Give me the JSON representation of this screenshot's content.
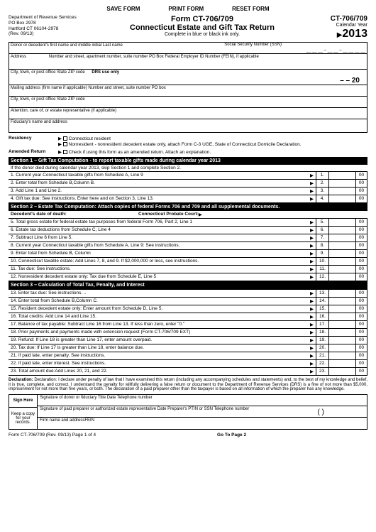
{
  "buttons": {
    "save": "SAVE FORM",
    "print": "PRINT FORM",
    "reset": "RESET FORM"
  },
  "dept": {
    "l1": "Department of Revenue Services",
    "l2": "PO Box 2978",
    "l3": "Hartford CT 06104-2978",
    "l4": "(Rev. 09/13)"
  },
  "title": {
    "code": "Form CT-706/709",
    "name": "Connecticut Estate and Gift Tax Return",
    "sub": "Complete in blue or black ink only."
  },
  "yearbox": {
    "code": "CT-706/709",
    "cal": "Calendar Year",
    "year": "2013"
  },
  "fields": {
    "donor": "Donor or decedent's first name and middle initial Last name",
    "ssn": "Social Security Number (SSN)",
    "address": "Address",
    "address_hint": "Number and street, apartment number, suite number   PO Box  Federal Employer ID Number (FEIN), if applicable",
    "city1": "City, town, or post office State ZIP code",
    "drs": "DRS use only",
    "dash20": "–                – 20",
    "mailing": "Mailing address (firm name if applicable) Number and street, suite number  PO box",
    "city2": "City, town, or post office State ZIP code",
    "attention": "Attention, care of, or estate representative (if applicable)",
    "fiduciary": "Fiduciary's name and address"
  },
  "residency": {
    "label": "Residency",
    "opt1": "Connecticut resident",
    "opt2": "Nonresident - nonresident decedent estate only, attach Form C-3 UGE, State of Connecticut Domicile Declaration.",
    "amended_label": "Amended Return",
    "amended_text": "Check if using this form as an amended return. Attach an explanation."
  },
  "sec1": {
    "header": "Section 1 –  Gift Tax Computation - to report taxable gifts made during calendar year 2013",
    "sub": "If the donor died during calendar year 2013, skip Section 1 and complete Section 2.",
    "lines": [
      {
        "n": "1",
        "d": "1. Current year Connecticut taxable gifts from Schedule A, Line 9",
        "c": "00"
      },
      {
        "n": "2",
        "d": "2. Enter total from Schedule B,Column B.",
        "c": "00"
      },
      {
        "n": "3",
        "d": "3. Add Line 1 and Line 2.",
        "c": "00"
      },
      {
        "n": "4",
        "d": "4. Gift tax due: See instructions. Enter here and on Section 3, Line 13.",
        "c": "00"
      }
    ]
  },
  "sec2": {
    "header": "Section 2 –  Estate Tax Computation: Attach copies of federal Forms 706 and 709 and all supplemental documents.",
    "sub_l": "Decedent's date of death:",
    "sub_r": "Connecticut Probate Court:",
    "lines": [
      {
        "n": "5",
        "d": "5. Total gross estate for federal estate tax purposes from federal Form 706, Part 2, Line 1",
        "c": "00"
      },
      {
        "n": "6",
        "d": "6. Estate tax deductions from Schedule C, Line 4",
        "c": "00"
      },
      {
        "n": "7",
        "d": "7. Subtract Line 6 from Line 5.",
        "c": "00"
      },
      {
        "n": "8",
        "d": "8. Current year Connecticut taxable gifts from Schedule A, Line 9: See instructions.",
        "c": "00"
      },
      {
        "n": "9",
        "d": "9. Enter total from Schedule B, Column",
        "c": "00"
      },
      {
        "n": "10",
        "d": "10. Connecticut taxable estate: Add Lines 7, 8, and 9. If $2,000,000 or less, see instructions.",
        "c": "00"
      },
      {
        "n": "11",
        "d": "11. Tax due: See instructions.",
        "c": "00"
      },
      {
        "n": "12",
        "d": "12. Nonresident decedent estate only: Tax due from Schedule E, Line 5",
        "c": "00"
      }
    ]
  },
  "sec3": {
    "header": "Section 3 –  Calculation of Total Tax, Penalty, and Interest",
    "lines": [
      {
        "n": "13",
        "d": "13. Enter tax due: See instructions. ..",
        "c": "00"
      },
      {
        "n": "14",
        "d": "14. Enter total from Schedule B,Column C.",
        "c": "00"
      },
      {
        "n": "15",
        "d": "15. Resident decedent estate only: Enter amount from Schedule D, Line 5.",
        "c": "00"
      },
      {
        "n": "16",
        "d": "16. Total credits: Add Line 14 and Line 15.",
        "c": "00"
      },
      {
        "n": "17",
        "d": "17. Balance of tax payable: Subtract Line 16 from Line 13. If less than zero, enter \"0.\"",
        "c": "00"
      },
      {
        "n": "18",
        "d": "18. Prior payments and payments made with extension request (Form CT-706/709 EXT)",
        "c": "00"
      },
      {
        "n": "19",
        "d": "19. Refund: If Line 18 is greater than Line 17, enter amount overpaid.",
        "c": "00"
      },
      {
        "n": "20",
        "d": "20. Tax due: If Line 17 is greater than Line 18, enter balance due.",
        "c": "00"
      },
      {
        "n": "21",
        "d": "21. If paid late, enter penalty. See instructions.",
        "c": "00"
      },
      {
        "n": "22",
        "d": "22. If paid late, enter interest. See instructions.",
        "c": "00"
      },
      {
        "n": "23",
        "d": "23. Total amount due:Add Lines 20, 21, and 22.",
        "c": "00"
      }
    ]
  },
  "declaration": "Declaration: I declare under penalty of law that I have examined this return (including any accompanying schedules and statements) and, to the best of my knowledge and belief, it is true, complete, and correct. I understand the penalty for willfully delivering a false return or document to the Department of Revenue Services (DRS) is a fine of not more than $5,000, imprisonment for not more than five years, or both. The declaration of a paid preparer other than the taxpayer is based on all information of which the preparer has any knowledge.",
  "sign": {
    "here": "Sign Here",
    "keep": "Keep a copy for your records.",
    "row1": "Signature of donor or fiduciary Title  Date Telephone number",
    "row2": "Signature of paid preparer or authorized estate representative Date Preparer's PTIN or SSN Telephone number",
    "row3": "Firm name and addressFEIN",
    "paren": "(          )"
  },
  "footer": {
    "left": "Form CT-706/709 (Rev. 09/13)",
    "page": "Page 1 of 4",
    "goto": "Go To Page 2"
  }
}
